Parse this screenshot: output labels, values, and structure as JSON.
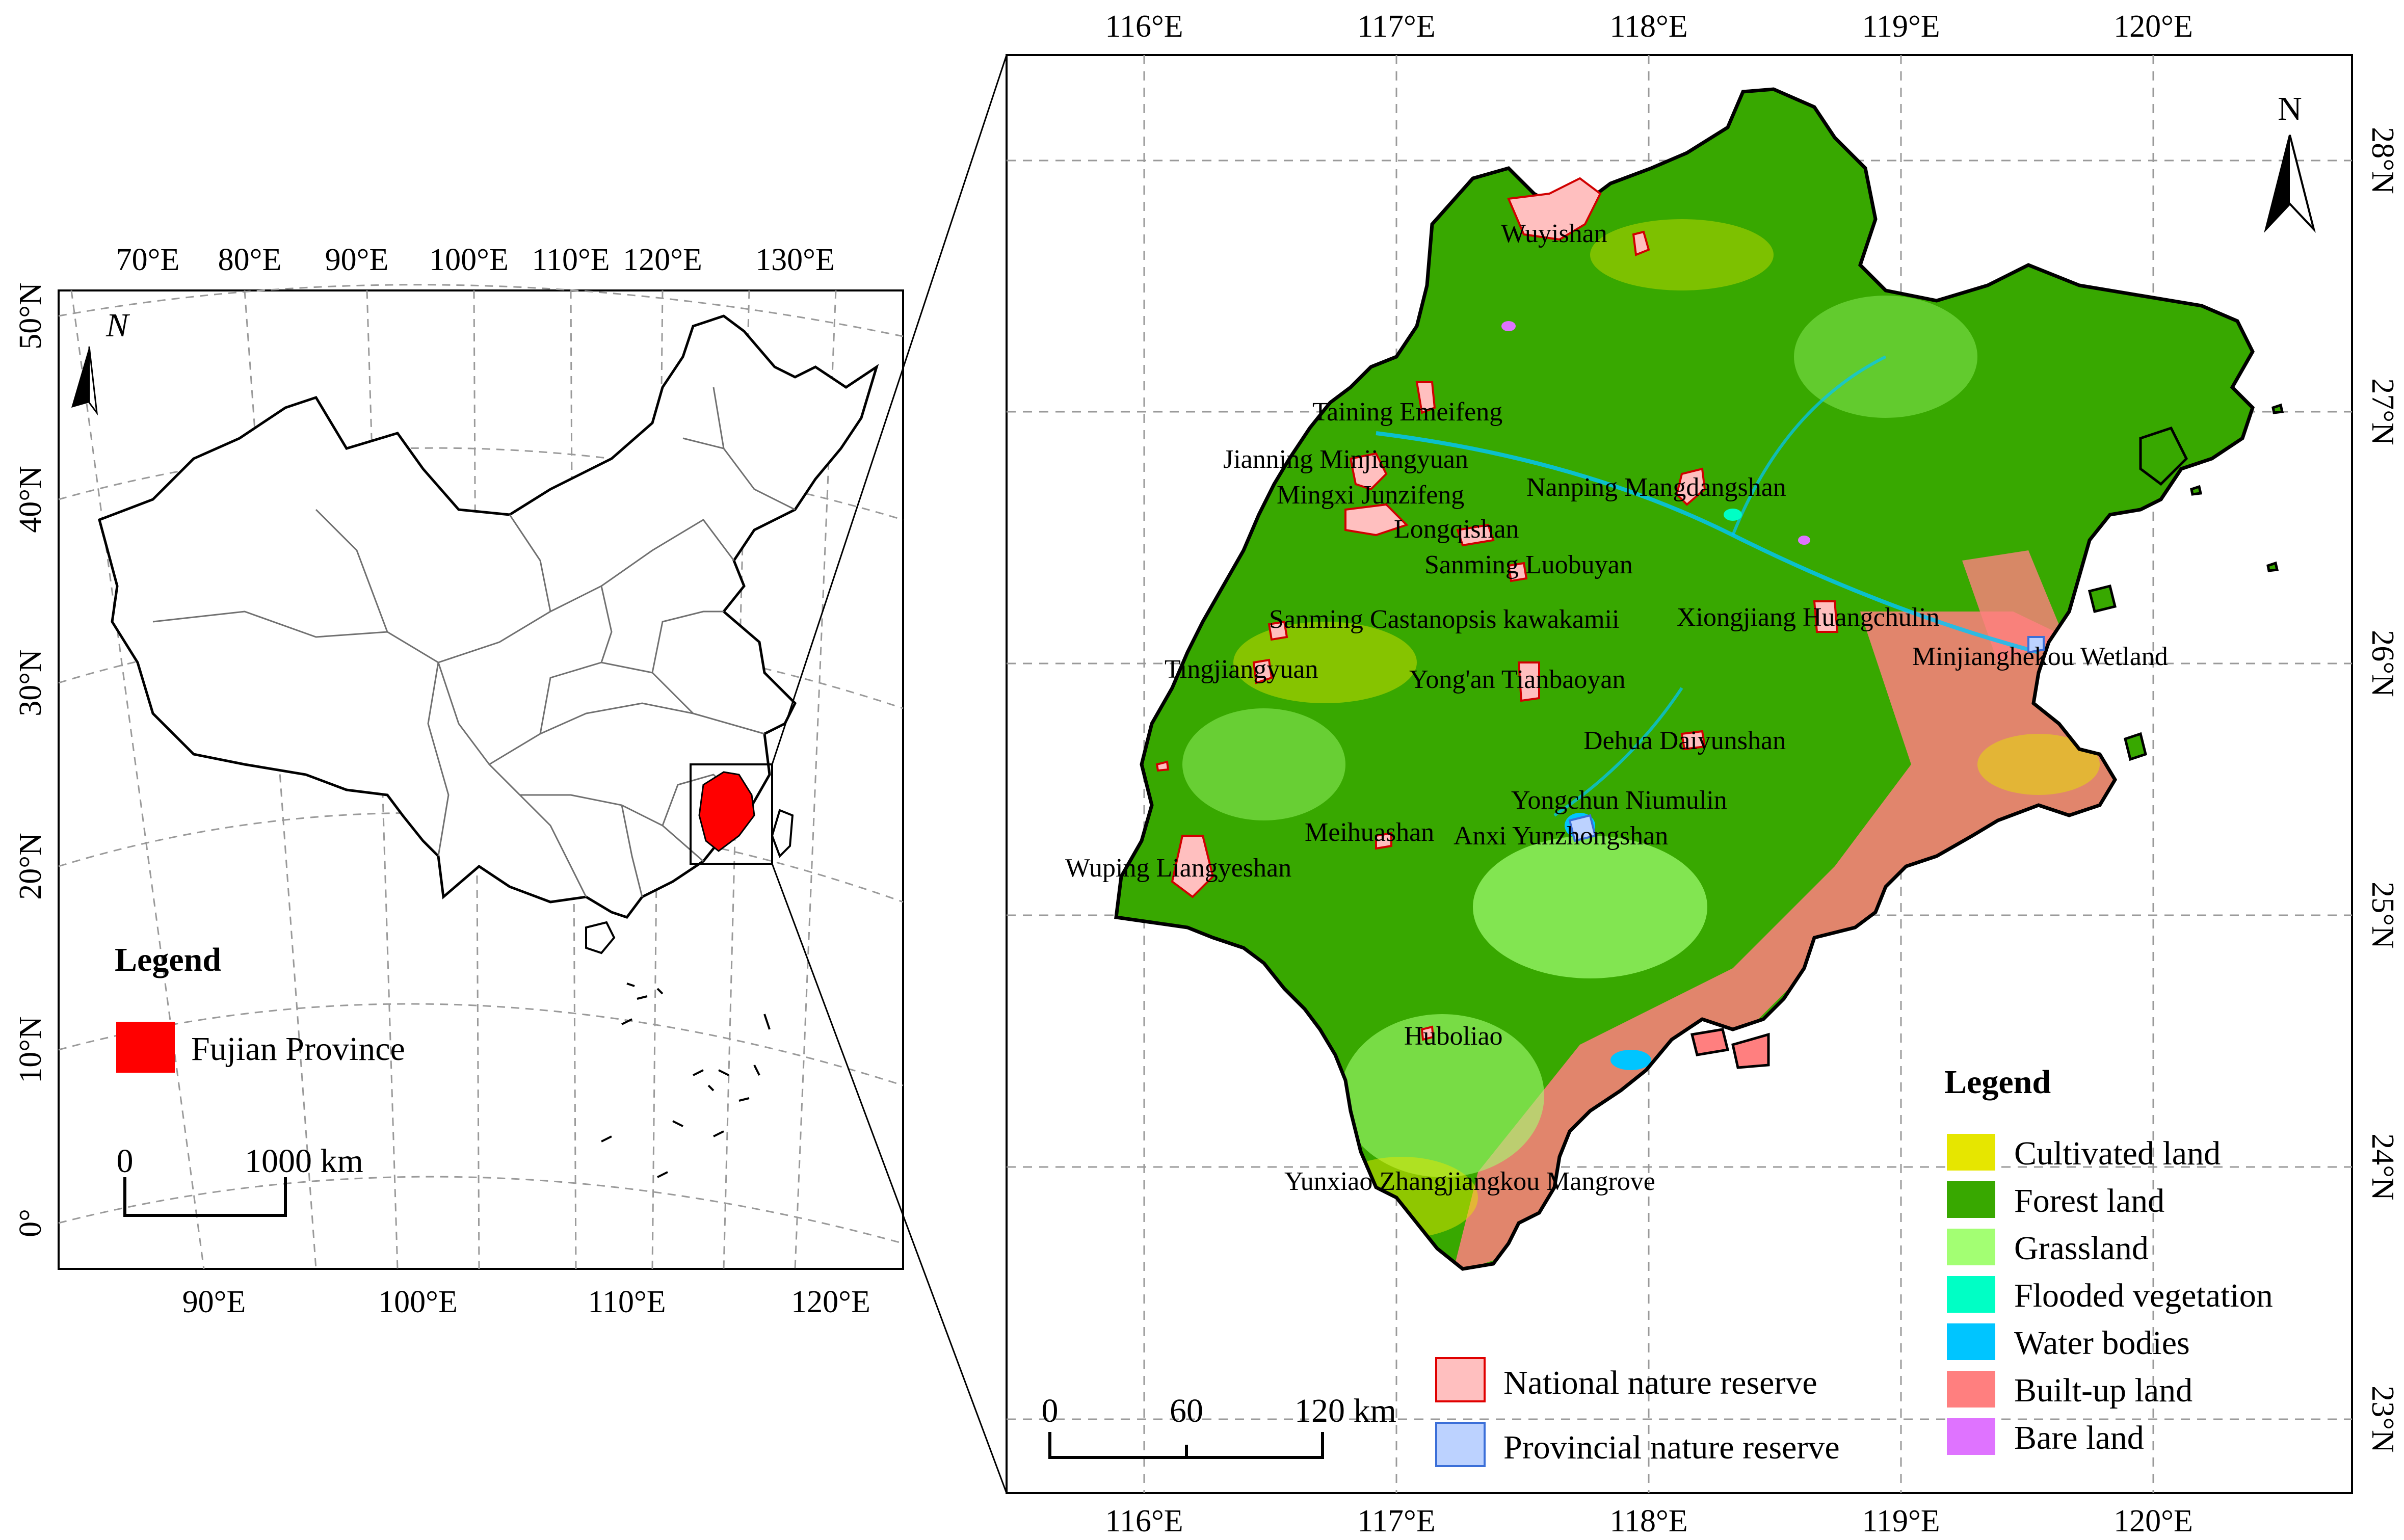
{
  "overview_map": {
    "top_ticks": [
      "70°E",
      "80°E",
      "90°E",
      "100°E",
      "110°E",
      "120°E",
      "130°E"
    ],
    "bottom_ticks": [
      "90°E",
      "100°E",
      "110°E",
      "120°E"
    ],
    "left_ticks": [
      "50°N",
      "40°N",
      "30°N",
      "20°N",
      "10°N",
      "0°"
    ],
    "north_label": "N",
    "legend_title": "Legend",
    "legend_item": "Fujian Province",
    "highlight_color": "#ff0000",
    "scale_labels": [
      "0",
      "1000 km"
    ]
  },
  "detail_map": {
    "top_ticks": [
      "116°E",
      "117°E",
      "118°E",
      "119°E",
      "120°E"
    ],
    "bottom_ticks": [
      "116°E",
      "117°E",
      "118°E",
      "119°E",
      "120°E"
    ],
    "right_ticks": [
      "28°N",
      "27°N",
      "26°N",
      "25°N",
      "24°N",
      "23°N"
    ],
    "north_label": "N",
    "scale_labels": [
      "0",
      "60",
      "120 km"
    ],
    "reserve_legend": [
      {
        "label": "National nature reserve",
        "color": "#ffbfbf",
        "border": "#e00000"
      },
      {
        "label": "Provincial nature reserve",
        "color": "#bcd2ff",
        "border": "#3b6fd8"
      }
    ],
    "legend_title": "Legend",
    "land_use_legend": [
      {
        "label": "Cultivated land",
        "color": "#e6e600"
      },
      {
        "label": "Forest land",
        "color": "#38a800"
      },
      {
        "label": "Grassland",
        "color": "#a3ff73"
      },
      {
        "label": "Flooded vegetation",
        "color": "#00ffc5"
      },
      {
        "label": "Water bodies",
        "color": "#00c5ff"
      },
      {
        "label": "Built-up land",
        "color": "#ff7f7f"
      },
      {
        "label": "Bare land",
        "color": "#df73ff"
      }
    ],
    "reserve_labels": [
      "Wuyishan",
      "Taining Emeifeng",
      "Jianning Minjiangyuan",
      "Mingxi Junzifeng",
      "Nanping Mangdangshan",
      "Longqishan",
      "Sanming Luobuyan",
      "Sanming Castanopsis kawakamii",
      "Xiongjiang Huangchulin",
      "Minjianghekou Wetland",
      "Tingjiangyuan",
      "Yong'an Tianbaoyan",
      "Dehua Daiyunshan",
      "Yongchun Niumulin",
      "Meihuashan",
      "Anxi Yunzhongshan",
      "Wuping Liangyeshan",
      "Huboliao",
      "Yunxiao Zhangjiangkou Mangrove"
    ]
  }
}
